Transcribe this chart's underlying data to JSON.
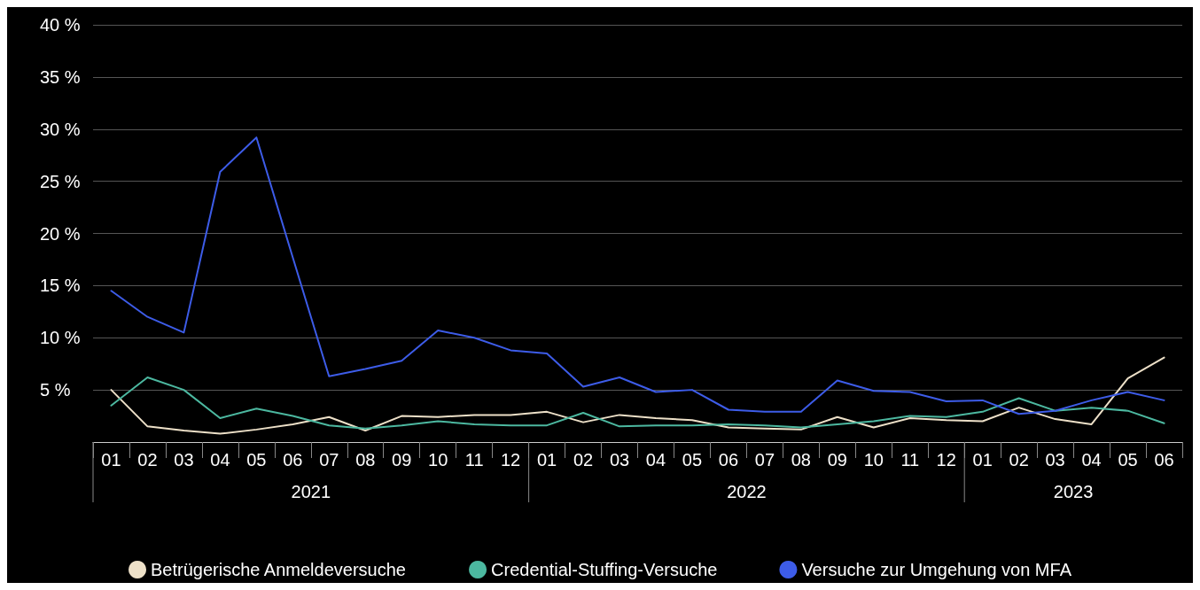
{
  "chart_data": {
    "type": "line",
    "categories": [
      "01",
      "02",
      "03",
      "04",
      "05",
      "06",
      "07",
      "08",
      "09",
      "10",
      "11",
      "12",
      "01",
      "02",
      "03",
      "04",
      "05",
      "06",
      "07",
      "08",
      "09",
      "10",
      "11",
      "12",
      "01",
      "02",
      "03",
      "04",
      "05",
      "06"
    ],
    "annotations": [
      "2021",
      "2022",
      "2023"
    ],
    "series": [
      {
        "name": "Betrügerische Anmeldeversuche",
        "color": "#ede0c8",
        "values": [
          5.0,
          1.5,
          1.1,
          0.8,
          1.2,
          1.7,
          2.4,
          1.1,
          2.5,
          2.4,
          2.6,
          2.6,
          2.9,
          1.9,
          2.6,
          2.3,
          2.1,
          1.4,
          1.3,
          1.2,
          2.4,
          1.4,
          2.3,
          2.1,
          2.0,
          3.3,
          2.2,
          1.7,
          6.1,
          8.1
        ]
      },
      {
        "name": "Credential-Stuffing-Versuche",
        "color": "#4cb8a0",
        "values": [
          3.5,
          6.2,
          5.0,
          2.3,
          3.2,
          2.5,
          1.6,
          1.3,
          1.6,
          2.0,
          1.7,
          1.6,
          1.6,
          2.8,
          1.5,
          1.6,
          1.6,
          1.7,
          1.6,
          1.4,
          1.7,
          2.0,
          2.5,
          2.4,
          2.9,
          4.2,
          3.0,
          3.3,
          3.0,
          1.8
        ]
      },
      {
        "name": "Versuche zur Umgehung von MFA",
        "color": "#3d5ce8",
        "values": [
          14.5,
          12.0,
          10.5,
          25.9,
          29.2,
          17.7,
          6.3,
          7.0,
          7.8,
          10.7,
          10.0,
          8.8,
          8.5,
          5.3,
          6.2,
          4.8,
          5.0,
          3.1,
          2.9,
          2.9,
          5.9,
          4.9,
          4.8,
          3.9,
          4.0,
          2.7,
          3.0,
          4.0,
          4.8,
          4.0
        ]
      }
    ],
    "ylim": [
      0,
      40
    ],
    "yticks": [
      {
        "value": 0,
        "label": null
      },
      {
        "value": 5,
        "label": "5 %"
      },
      {
        "value": 10,
        "label": "10 %"
      },
      {
        "value": 15,
        "label": "15 %"
      },
      {
        "value": 20,
        "label": "20 %"
      },
      {
        "value": 25,
        "label": "25 %"
      },
      {
        "value": 30,
        "label": "30 %"
      },
      {
        "value": 35,
        "label": "35 %"
      },
      {
        "value": 40,
        "label": "40 %"
      }
    ],
    "grid": "y",
    "legend": "bottom",
    "marker": "none",
    "line_style": "solid"
  }
}
